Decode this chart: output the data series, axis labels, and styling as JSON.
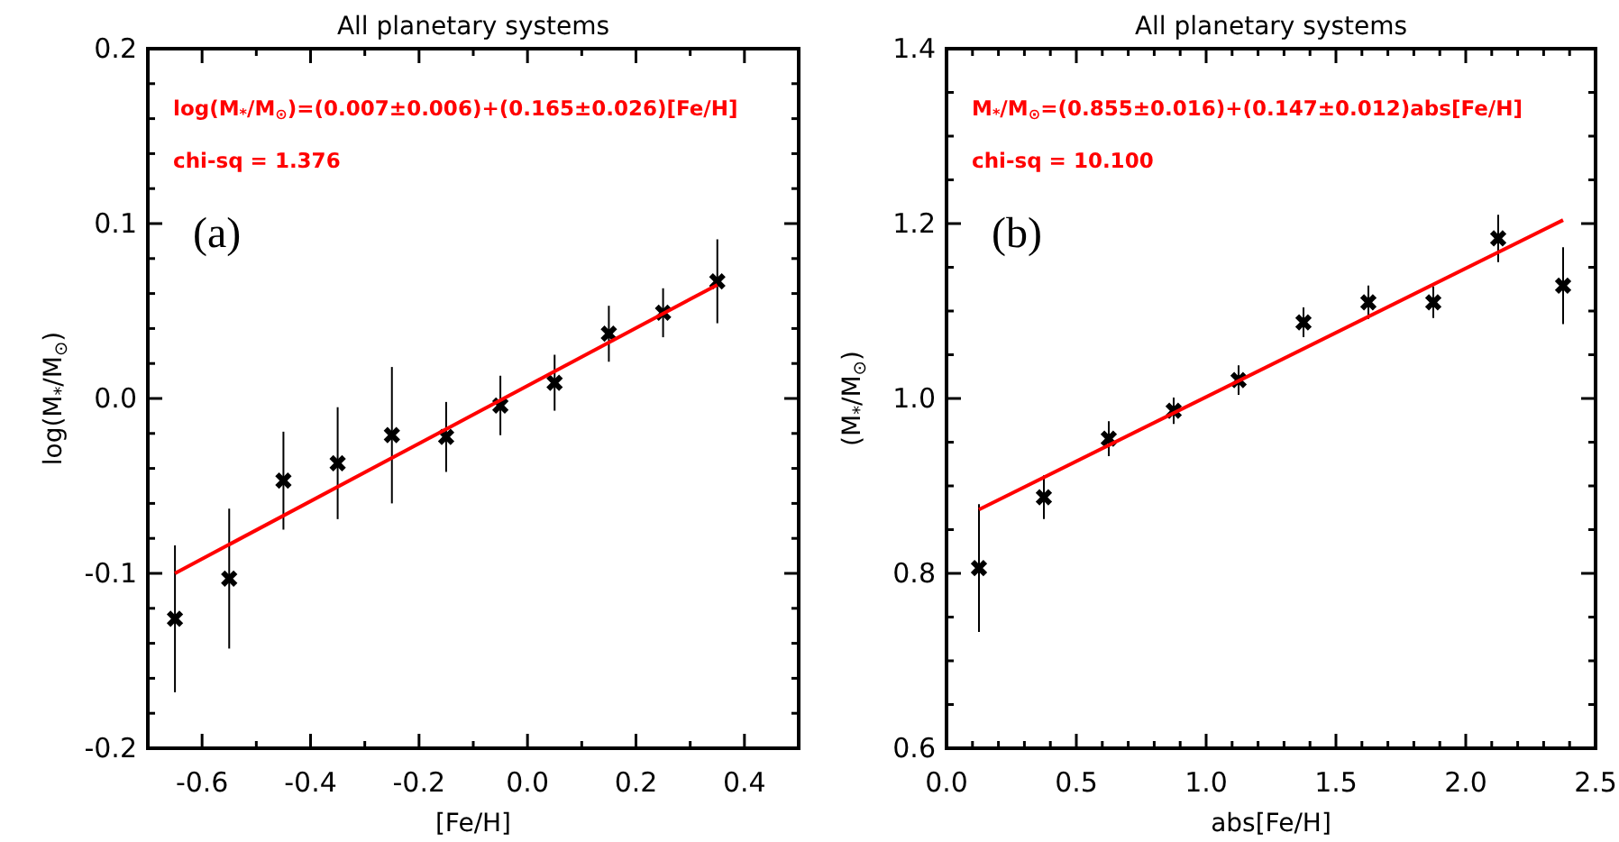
{
  "chart_data": [
    {
      "type": "scatter",
      "title": "All planetary systems",
      "xlabel": "[Fe/H]",
      "ylabel": "log(M$_{*}$/M$_{⊙}$)",
      "xlim": [
        -0.7,
        0.5
      ],
      "ylim": [
        -0.2,
        0.2
      ],
      "xticks": [
        {
          "value": -0.6,
          "label": "-0.6"
        },
        {
          "value": -0.5,
          "label": null
        },
        {
          "value": -0.4,
          "label": "-0.4"
        },
        {
          "value": -0.3,
          "label": null
        },
        {
          "value": -0.2,
          "label": "-0.2"
        },
        {
          "value": -0.1,
          "label": null
        },
        {
          "value": 0,
          "label": "0.0"
        },
        {
          "value": 0.1,
          "label": null
        },
        {
          "value": 0.2,
          "label": "0.2"
        },
        {
          "value": 0.3,
          "label": null
        },
        {
          "value": 0.4,
          "label": "0.4"
        }
      ],
      "yticks": [
        {
          "value": -0.2,
          "label": "-0.2"
        },
        {
          "value": -0.18,
          "label": null
        },
        {
          "value": -0.16,
          "label": null
        },
        {
          "value": -0.14,
          "label": null
        },
        {
          "value": -0.12,
          "label": null
        },
        {
          "value": -0.1,
          "label": "-0.1"
        },
        {
          "value": -0.08,
          "label": null
        },
        {
          "value": -0.06,
          "label": null
        },
        {
          "value": -0.04,
          "label": null
        },
        {
          "value": -0.02,
          "label": null
        },
        {
          "value": 0,
          "label": "0.0"
        },
        {
          "value": 0.02,
          "label": null
        },
        {
          "value": 0.04,
          "label": null
        },
        {
          "value": 0.06,
          "label": null
        },
        {
          "value": 0.08,
          "label": null
        },
        {
          "value": 0.1,
          "label": "0.1"
        },
        {
          "value": 0.12,
          "label": null
        },
        {
          "value": 0.14,
          "label": null
        },
        {
          "value": 0.16,
          "label": null
        },
        {
          "value": 0.18,
          "label": null
        },
        {
          "value": 0.2,
          "label": "0.2"
        }
      ],
      "annotations": [
        "log(M$_{*}$/M$_{⊙}$)=(0.007±0.006)+(0.165±0.026)[Fe/H]",
        "chi-sq = 1.376",
        "(a)"
      ],
      "series": [
        {
          "color": "#000000",
          "marker": "cross",
          "x": [
            -0.65,
            -0.55,
            -0.45,
            -0.35,
            -0.25,
            -0.15,
            -0.05,
            0.05,
            0.15,
            0.25,
            0.35
          ],
          "values": [
            -0.126,
            -0.103,
            -0.047,
            -0.037,
            -0.021,
            -0.022,
            -0.004,
            0.009,
            0.037,
            0.049,
            0.067
          ],
          "errors": [
            0.042,
            0.04,
            0.028,
            0.032,
            0.039,
            0.02,
            0.017,
            0.016,
            0.016,
            0.014,
            0.024
          ]
        },
        {
          "type": "line",
          "color": "#ff0000",
          "line_style": "solid",
          "x": [
            -0.65,
            0.35
          ],
          "values": [
            -0.1,
            0.065
          ]
        }
      ]
    },
    {
      "type": "scatter",
      "title": "All planetary systems",
      "xlabel": "abs[Fe/H]",
      "ylabel": "(M$_{*}$/M$_{⊙}$)",
      "xlim": [
        0,
        2.5
      ],
      "ylim": [
        0.6,
        1.4
      ],
      "xticks": [
        {
          "value": 0,
          "label": "0.0"
        },
        {
          "value": 0.1,
          "label": null
        },
        {
          "value": 0.2,
          "label": null
        },
        {
          "value": 0.3,
          "label": null
        },
        {
          "value": 0.4,
          "label": null
        },
        {
          "value": 0.5,
          "label": "0.5"
        },
        {
          "value": 0.6,
          "label": null
        },
        {
          "value": 0.7,
          "label": null
        },
        {
          "value": 0.8,
          "label": null
        },
        {
          "value": 0.9,
          "label": null
        },
        {
          "value": 1,
          "label": "1.0"
        },
        {
          "value": 1.1,
          "label": null
        },
        {
          "value": 1.2,
          "label": null
        },
        {
          "value": 1.3,
          "label": null
        },
        {
          "value": 1.4,
          "label": null
        },
        {
          "value": 1.5,
          "label": "1.5"
        },
        {
          "value": 1.6,
          "label": null
        },
        {
          "value": 1.7,
          "label": null
        },
        {
          "value": 1.8,
          "label": null
        },
        {
          "value": 1.9,
          "label": null
        },
        {
          "value": 2,
          "label": "2.0"
        },
        {
          "value": 2.1,
          "label": null
        },
        {
          "value": 2.2,
          "label": null
        },
        {
          "value": 2.3,
          "label": null
        },
        {
          "value": 2.4,
          "label": null
        },
        {
          "value": 2.5,
          "label": "2.5"
        }
      ],
      "yticks": [
        {
          "value": 0.6,
          "label": "0.6"
        },
        {
          "value": 0.65,
          "label": null
        },
        {
          "value": 0.7,
          "label": null
        },
        {
          "value": 0.75,
          "label": null
        },
        {
          "value": 0.8,
          "label": "0.8"
        },
        {
          "value": 0.85,
          "label": null
        },
        {
          "value": 0.9,
          "label": null
        },
        {
          "value": 0.95,
          "label": null
        },
        {
          "value": 1,
          "label": "1.0"
        },
        {
          "value": 1.05,
          "label": null
        },
        {
          "value": 1.1,
          "label": null
        },
        {
          "value": 1.15,
          "label": null
        },
        {
          "value": 1.2,
          "label": "1.2"
        },
        {
          "value": 1.25,
          "label": null
        },
        {
          "value": 1.3,
          "label": null
        },
        {
          "value": 1.35,
          "label": null
        },
        {
          "value": 1.4,
          "label": "1.4"
        }
      ],
      "annotations": [
        "M$_{*}$/M$_{⊙}$=(0.855±0.016)+(0.147±0.012)abs[Fe/H]",
        "chi-sq = 10.100",
        "(b)"
      ],
      "series": [
        {
          "color": "#000000",
          "marker": "cross",
          "x": [
            0.125,
            0.375,
            0.625,
            0.875,
            1.125,
            1.375,
            1.625,
            1.875,
            2.125,
            2.375
          ],
          "values": [
            0.806,
            0.887,
            0.954,
            0.986,
            1.021,
            1.087,
            1.11,
            1.11,
            1.183,
            1.129
          ],
          "errors": [
            0.073,
            0.025,
            0.02,
            0.015,
            0.017,
            0.017,
            0.019,
            0.018,
            0.027,
            0.044
          ]
        },
        {
          "type": "line",
          "color": "#ff0000",
          "line_style": "solid",
          "x": [
            0.125,
            2.375
          ],
          "values": [
            0.873,
            1.204
          ]
        }
      ]
    }
  ]
}
